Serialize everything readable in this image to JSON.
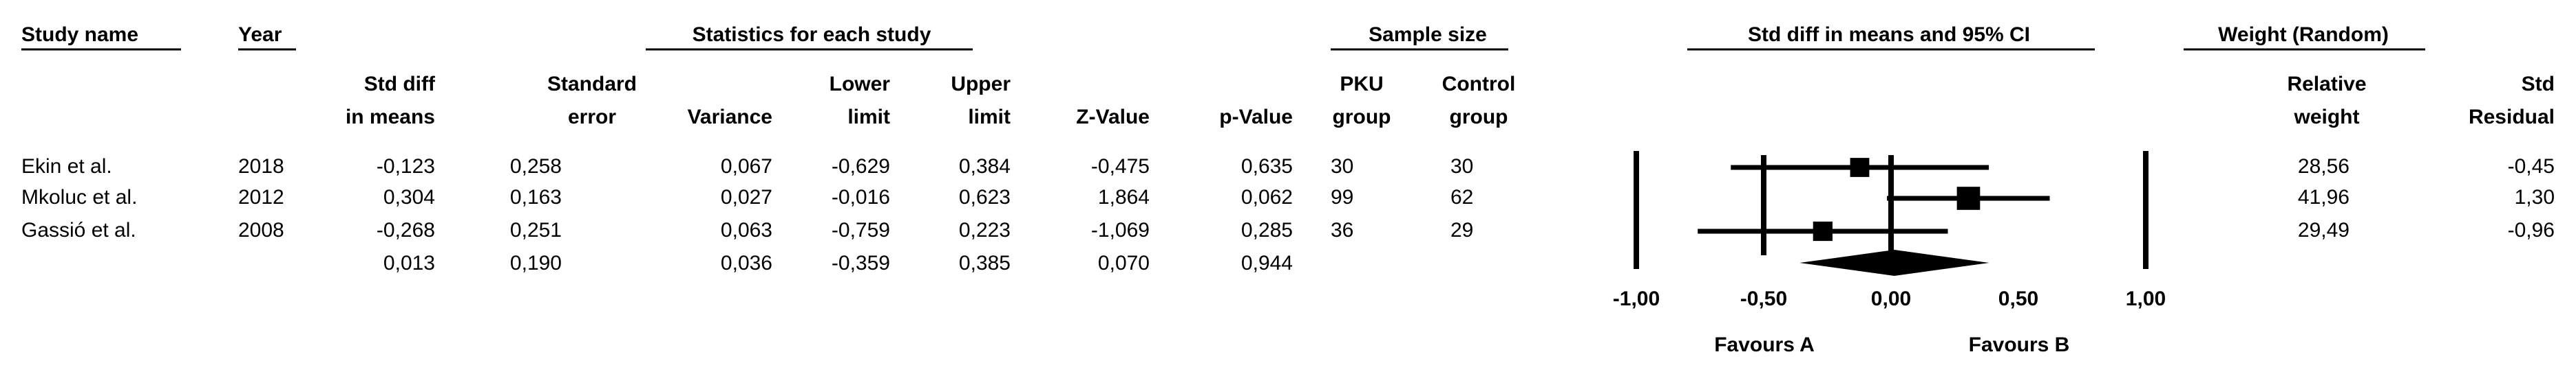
{
  "header": {
    "study_name": "Study name",
    "year": "Year",
    "statistics": "Statistics for each study",
    "sample_size": "Sample size",
    "plot": "Std diff in means and 95% CI",
    "weight": "Weight (Random)"
  },
  "chart_data": {
    "type": "forest",
    "categories": [
      "Ekin et al.",
      "Mkoluc et al.",
      "Gassió et al.",
      null
    ],
    "years": [
      "2018",
      "2012",
      "2008",
      null
    ],
    "columns": [
      {
        "name": [
          "Std diff",
          "in means"
        ],
        "values": [
          -0.123,
          0.304,
          -0.268,
          0.013
        ],
        "value_labels": [
          "-0,123",
          "0,304",
          "-0,268",
          "0,013"
        ]
      },
      {
        "name": [
          "Standard",
          "error"
        ],
        "values": [
          0.258,
          0.163,
          0.251,
          0.19
        ],
        "value_labels": [
          "0,258",
          "0,163",
          "0,251",
          "0,190"
        ]
      },
      {
        "name": [
          "Variance"
        ],
        "values": [
          0.067,
          0.027,
          0.063,
          0.036
        ],
        "value_labels": [
          "0,067",
          "0,027",
          "0,063",
          "0,036"
        ]
      },
      {
        "name": [
          "Lower",
          "limit"
        ],
        "values": [
          -0.629,
          -0.016,
          -0.759,
          -0.359
        ],
        "value_labels": [
          "-0,629",
          "-0,016",
          "-0,759",
          "-0,359"
        ]
      },
      {
        "name": [
          "Upper",
          "limit"
        ],
        "values": [
          0.384,
          0.623,
          0.223,
          0.385
        ],
        "value_labels": [
          "0,384",
          "0,623",
          "0,223",
          "0,385"
        ]
      },
      {
        "name": [
          "Z-Value"
        ],
        "values": [
          -0.475,
          1.864,
          -1.069,
          0.07
        ],
        "value_labels": [
          "-0,475",
          "1,864",
          "-1,069",
          "0,070"
        ]
      },
      {
        "name": [
          "p-Value"
        ],
        "values": [
          0.635,
          0.062,
          0.285,
          0.944
        ],
        "value_labels": [
          "0,635",
          "0,062",
          "0,285",
          "0,944"
        ]
      }
    ],
    "sample_columns": [
      {
        "name": [
          "PKU",
          "group"
        ],
        "values": [
          30,
          99,
          36,
          null
        ]
      },
      {
        "name": [
          "Control",
          "group"
        ],
        "values": [
          30,
          62,
          29,
          null
        ]
      }
    ],
    "weight_columns": [
      {
        "name": [
          "Relative",
          "weight"
        ],
        "values": [
          28.56,
          41.96,
          29.49,
          null
        ],
        "value_labels": [
          "28,56",
          "41,96",
          "29,49",
          null
        ]
      },
      {
        "name": [
          "Std",
          "Residual"
        ],
        "values": [
          -0.45,
          1.3,
          -0.96,
          null
        ],
        "value_labels": [
          "-0,45",
          "1,30",
          "-0,96",
          null
        ]
      }
    ],
    "xlim": [
      -1,
      1
    ],
    "xticks": [
      {
        "value": -1,
        "label": "-1,00"
      },
      {
        "value": -0.5,
        "label": "-0,50"
      },
      {
        "value": 0,
        "label": "0,00"
      },
      {
        "value": 0.5,
        "label": "0,50"
      },
      {
        "value": 1,
        "label": "1,00"
      }
    ],
    "favours_left": "Favours A",
    "favours_right": "Favours B",
    "color": "#000000"
  }
}
